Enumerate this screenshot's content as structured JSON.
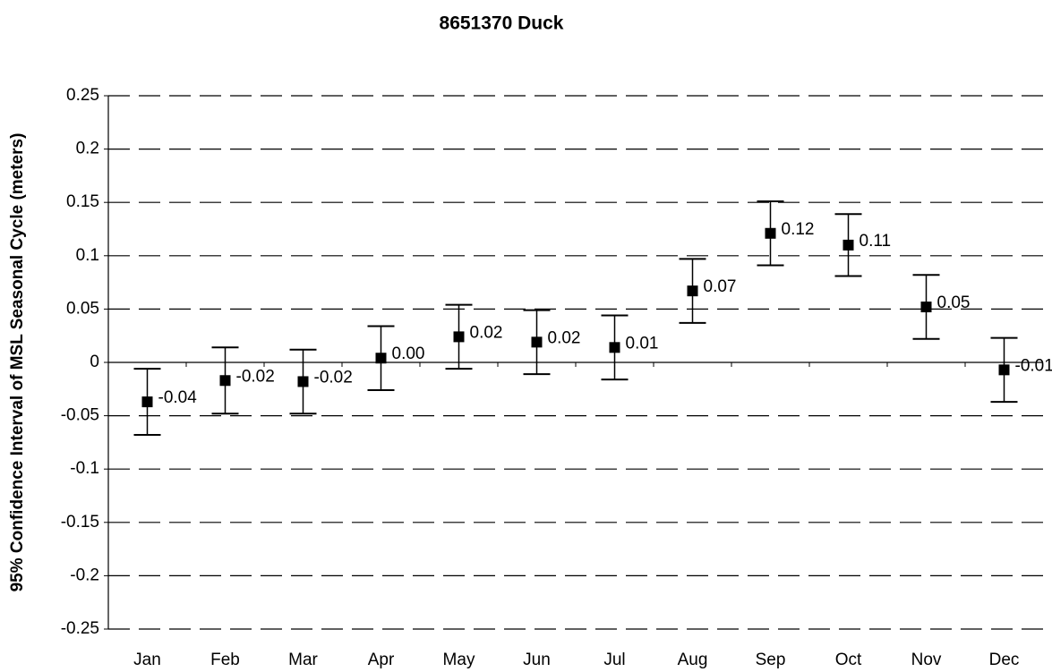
{
  "chart_data": {
    "type": "errorbar",
    "title": "8651370 Duck",
    "y_label": "95% Confidence Interval of MSL Seasonal Cycle (meters)",
    "categories": [
      "Jan",
      "Feb",
      "Mar",
      "Apr",
      "May",
      "Jun",
      "Jul",
      "Aug",
      "Sep",
      "Oct",
      "Nov",
      "Dec"
    ],
    "values": [
      -0.037,
      -0.017,
      -0.018,
      0.004,
      0.024,
      0.019,
      0.014,
      0.067,
      0.121,
      0.11,
      0.052,
      -0.007
    ],
    "value_labels": [
      "-0.04",
      "-0.02",
      "-0.02",
      "0.00",
      "0.02",
      "0.02",
      "0.01",
      "0.07",
      "0.12",
      "0.11",
      "0.05",
      "-0.01"
    ],
    "errors": [
      0.031,
      0.031,
      0.03,
      0.03,
      0.03,
      0.03,
      0.03,
      0.03,
      0.03,
      0.029,
      0.03,
      0.03
    ],
    "color": "#000000",
    "ylim": [
      -0.25,
      0.25
    ],
    "yticks": [
      0.25,
      0.2,
      0.15,
      0.1,
      0.05,
      0,
      -0.05,
      -0.1,
      -0.15,
      -0.2,
      -0.25
    ],
    "grid": true
  }
}
